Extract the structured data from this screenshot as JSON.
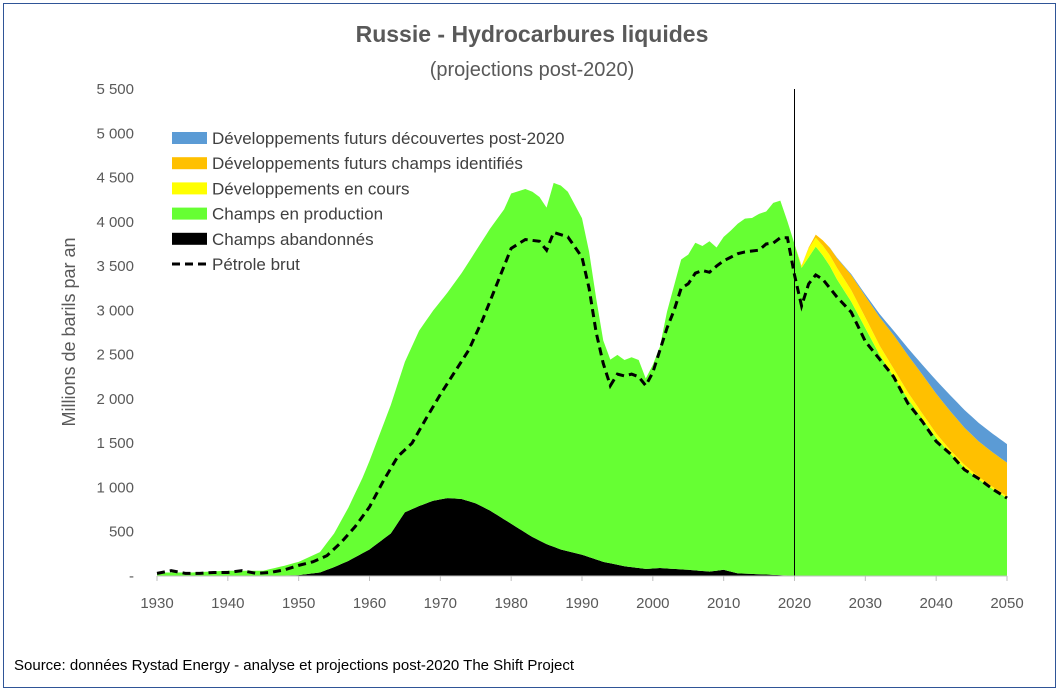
{
  "chart_data": {
    "type": "area",
    "title": "Russie - Hydrocarbures liquides",
    "subtitle": "(projections post-2020)",
    "ylabel": "Millions de barils par an",
    "xlabel": "",
    "source": "Source: données Rystad Energy - analyse et projections post-2020  The Shift Project",
    "xlim": [
      1930,
      2050
    ],
    "ylim": [
      0,
      5500
    ],
    "x_ticks": [
      "1930",
      "1940",
      "1950",
      "1960",
      "1970",
      "1980",
      "1990",
      "2000",
      "2010",
      "2020",
      "2030",
      "2040",
      "2050"
    ],
    "y_ticks": [
      "-",
      "500",
      "1 000",
      "1 500",
      "2 000",
      "2 500",
      "3 000",
      "3 500",
      "4 000",
      "4 500",
      "5 000",
      "5 500"
    ],
    "vline_year": 2020,
    "legend_position": "top-left",
    "series": [
      {
        "name": "Champs abandonnés",
        "color": "#000000",
        "stack_order": 0,
        "points": [
          [
            1930,
            0
          ],
          [
            1945,
            0
          ],
          [
            1950,
            10
          ],
          [
            1953,
            40
          ],
          [
            1955,
            100
          ],
          [
            1957,
            170
          ],
          [
            1960,
            300
          ],
          [
            1963,
            480
          ],
          [
            1965,
            720
          ],
          [
            1967,
            790
          ],
          [
            1969,
            850
          ],
          [
            1971,
            880
          ],
          [
            1973,
            870
          ],
          [
            1975,
            820
          ],
          [
            1977,
            740
          ],
          [
            1979,
            640
          ],
          [
            1981,
            540
          ],
          [
            1983,
            440
          ],
          [
            1985,
            360
          ],
          [
            1987,
            300
          ],
          [
            1990,
            240
          ],
          [
            1993,
            160
          ],
          [
            1996,
            110
          ],
          [
            1999,
            80
          ],
          [
            2001,
            90
          ],
          [
            2003,
            80
          ],
          [
            2005,
            70
          ],
          [
            2008,
            50
          ],
          [
            2010,
            70
          ],
          [
            2012,
            30
          ],
          [
            2015,
            20
          ],
          [
            2018,
            10
          ],
          [
            2020,
            0
          ],
          [
            2050,
            0
          ]
        ]
      },
      {
        "name": "Champs en production",
        "color": "#66ff33",
        "stack_order": 1,
        "points": [
          [
            1930,
            40
          ],
          [
            1935,
            40
          ],
          [
            1940,
            60
          ],
          [
            1945,
            60
          ],
          [
            1948,
            110
          ],
          [
            1950,
            150
          ],
          [
            1953,
            230
          ],
          [
            1955,
            380
          ],
          [
            1957,
            600
          ],
          [
            1959,
            850
          ],
          [
            1961,
            1150
          ],
          [
            1963,
            1450
          ],
          [
            1965,
            1700
          ],
          [
            1967,
            1980
          ],
          [
            1969,
            2150
          ],
          [
            1971,
            2320
          ],
          [
            1973,
            2550
          ],
          [
            1975,
            2850
          ],
          [
            1977,
            3180
          ],
          [
            1979,
            3500
          ],
          [
            1980,
            3730
          ],
          [
            1982,
            3880
          ],
          [
            1983,
            3900
          ],
          [
            1984,
            3880
          ],
          [
            1985,
            3800
          ],
          [
            1986,
            4110
          ],
          [
            1987,
            4110
          ],
          [
            1988,
            4060
          ],
          [
            1990,
            3800
          ],
          [
            1991,
            3450
          ],
          [
            1992,
            2950
          ],
          [
            1993,
            2500
          ],
          [
            1994,
            2300
          ],
          [
            1995,
            2370
          ],
          [
            1996,
            2330
          ],
          [
            1997,
            2370
          ],
          [
            1998,
            2350
          ],
          [
            1999,
            2150
          ],
          [
            2000,
            2300
          ],
          [
            2001,
            2500
          ],
          [
            2002,
            2900
          ],
          [
            2003,
            3200
          ],
          [
            2004,
            3500
          ],
          [
            2005,
            3560
          ],
          [
            2006,
            3700
          ],
          [
            2007,
            3670
          ],
          [
            2008,
            3730
          ],
          [
            2009,
            3650
          ],
          [
            2010,
            3760
          ],
          [
            2011,
            3850
          ],
          [
            2012,
            3950
          ],
          [
            2013,
            4010
          ],
          [
            2014,
            4020
          ],
          [
            2015,
            4070
          ],
          [
            2016,
            4100
          ],
          [
            2017,
            4200
          ],
          [
            2018,
            4230
          ],
          [
            2019,
            4000
          ],
          [
            2020,
            3750
          ],
          [
            2021,
            3480
          ],
          [
            2022,
            3600
          ],
          [
            2023,
            3720
          ],
          [
            2024,
            3620
          ],
          [
            2025,
            3500
          ],
          [
            2026,
            3350
          ],
          [
            2028,
            3100
          ],
          [
            2030,
            2800
          ],
          [
            2032,
            2500
          ],
          [
            2034,
            2250
          ],
          [
            2036,
            2000
          ],
          [
            2038,
            1780
          ],
          [
            2040,
            1560
          ],
          [
            2042,
            1380
          ],
          [
            2044,
            1220
          ],
          [
            2046,
            1090
          ],
          [
            2048,
            980
          ],
          [
            2050,
            880
          ]
        ]
      },
      {
        "name": "Développements en cours",
        "color": "#ffff00",
        "stack_order": 2,
        "points": [
          [
            1930,
            0
          ],
          [
            2020,
            0
          ],
          [
            2021,
            20
          ],
          [
            2022,
            100
          ],
          [
            2023,
            100
          ],
          [
            2024,
            110
          ],
          [
            2026,
            130
          ],
          [
            2028,
            130
          ],
          [
            2030,
            120
          ],
          [
            2034,
            90
          ],
          [
            2038,
            60
          ],
          [
            2042,
            40
          ],
          [
            2046,
            30
          ],
          [
            2050,
            20
          ]
        ]
      },
      {
        "name": "Développements futurs champs identifiés",
        "color": "#ffc000",
        "stack_order": 3,
        "points": [
          [
            1930,
            0
          ],
          [
            2020,
            0
          ],
          [
            2022,
            10
          ],
          [
            2024,
            60
          ],
          [
            2026,
            110
          ],
          [
            2028,
            170
          ],
          [
            2030,
            240
          ],
          [
            2032,
            320
          ],
          [
            2034,
            380
          ],
          [
            2036,
            420
          ],
          [
            2038,
            440
          ],
          [
            2040,
            450
          ],
          [
            2042,
            440
          ],
          [
            2044,
            420
          ],
          [
            2046,
            400
          ],
          [
            2048,
            390
          ],
          [
            2050,
            380
          ]
        ]
      },
      {
        "name": "Développements futurs découvertes post-2020",
        "color": "#5b9bd5",
        "stack_order": 4,
        "points": [
          [
            1930,
            0
          ],
          [
            2024,
            0
          ],
          [
            2026,
            5
          ],
          [
            2028,
            10
          ],
          [
            2030,
            20
          ],
          [
            2032,
            35
          ],
          [
            2034,
            50
          ],
          [
            2036,
            80
          ],
          [
            2038,
            110
          ],
          [
            2040,
            150
          ],
          [
            2042,
            180
          ],
          [
            2044,
            200
          ],
          [
            2046,
            210
          ],
          [
            2048,
            210
          ],
          [
            2050,
            210
          ]
        ]
      },
      {
        "name": "Pétrole brut",
        "color": "#000000",
        "style": "dashed-line",
        "points": [
          [
            1930,
            30
          ],
          [
            1932,
            60
          ],
          [
            1934,
            30
          ],
          [
            1936,
            30
          ],
          [
            1938,
            40
          ],
          [
            1940,
            40
          ],
          [
            1942,
            60
          ],
          [
            1944,
            30
          ],
          [
            1946,
            40
          ],
          [
            1948,
            70
          ],
          [
            1950,
            120
          ],
          [
            1952,
            160
          ],
          [
            1954,
            230
          ],
          [
            1956,
            380
          ],
          [
            1958,
            560
          ],
          [
            1960,
            780
          ],
          [
            1962,
            1080
          ],
          [
            1964,
            1350
          ],
          [
            1966,
            1500
          ],
          [
            1968,
            1780
          ],
          [
            1970,
            2050
          ],
          [
            1972,
            2300
          ],
          [
            1974,
            2550
          ],
          [
            1976,
            2900
          ],
          [
            1978,
            3300
          ],
          [
            1980,
            3700
          ],
          [
            1982,
            3800
          ],
          [
            1984,
            3780
          ],
          [
            1985,
            3680
          ],
          [
            1986,
            3880
          ],
          [
            1988,
            3830
          ],
          [
            1990,
            3600
          ],
          [
            1991,
            3250
          ],
          [
            1992,
            2750
          ],
          [
            1993,
            2400
          ],
          [
            1994,
            2150
          ],
          [
            1995,
            2280
          ],
          [
            1996,
            2260
          ],
          [
            1997,
            2280
          ],
          [
            1998,
            2250
          ],
          [
            1999,
            2150
          ],
          [
            2000,
            2300
          ],
          [
            2001,
            2550
          ],
          [
            2002,
            2800
          ],
          [
            2003,
            3000
          ],
          [
            2004,
            3250
          ],
          [
            2005,
            3300
          ],
          [
            2006,
            3420
          ],
          [
            2007,
            3450
          ],
          [
            2008,
            3430
          ],
          [
            2009,
            3500
          ],
          [
            2010,
            3560
          ],
          [
            2011,
            3600
          ],
          [
            2012,
            3640
          ],
          [
            2013,
            3660
          ],
          [
            2014,
            3670
          ],
          [
            2015,
            3680
          ],
          [
            2016,
            3750
          ],
          [
            2017,
            3760
          ],
          [
            2018,
            3820
          ],
          [
            2019,
            3820
          ],
          [
            2020,
            3400
          ],
          [
            2021,
            3050
          ],
          [
            2022,
            3300
          ],
          [
            2023,
            3400
          ],
          [
            2024,
            3350
          ],
          [
            2026,
            3150
          ],
          [
            2028,
            2980
          ],
          [
            2030,
            2650
          ],
          [
            2032,
            2450
          ],
          [
            2034,
            2250
          ],
          [
            2036,
            1950
          ],
          [
            2038,
            1750
          ],
          [
            2040,
            1520
          ],
          [
            2042,
            1380
          ],
          [
            2044,
            1200
          ],
          [
            2046,
            1100
          ],
          [
            2048,
            980
          ],
          [
            2050,
            880
          ]
        ]
      }
    ],
    "legend": [
      {
        "label": "Développements futurs découvertes post-2020",
        "color": "#5b9bd5",
        "kind": "box"
      },
      {
        "label": "Développements futurs champs identifiés",
        "color": "#ffc000",
        "kind": "box"
      },
      {
        "label": "Développements en cours",
        "color": "#ffff00",
        "kind": "box"
      },
      {
        "label": "Champs en production",
        "color": "#66ff33",
        "kind": "box"
      },
      {
        "label": "Champs abandonnés",
        "color": "#000000",
        "kind": "box"
      },
      {
        "label": "Pétrole brut",
        "color": "#000000",
        "kind": "dash"
      }
    ]
  }
}
